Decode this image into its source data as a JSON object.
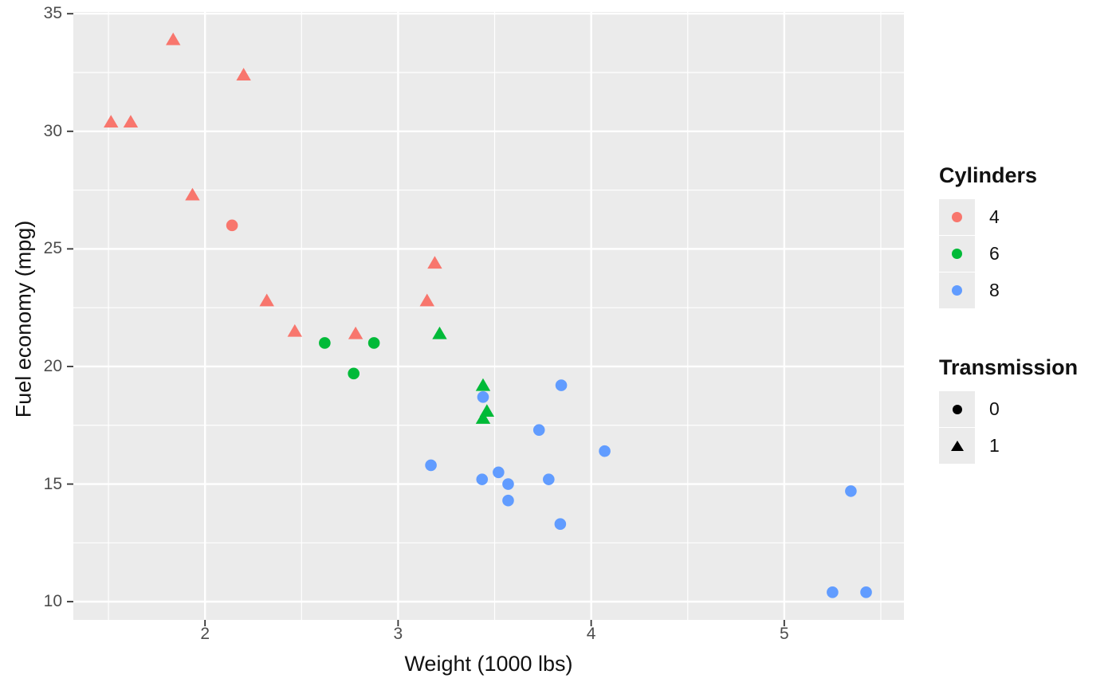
{
  "figure": {
    "background": "#ffffff",
    "panel_bg": "#ebebeb",
    "grid_color": "#ffffff",
    "tick_mark_color": "#333333",
    "tick_label_color": "#4d4d4d"
  },
  "chart_data": {
    "type": "scatter",
    "title": "",
    "xlabel": "Weight (1000 lbs)",
    "ylabel": "Fuel economy (mpg)",
    "xlim": [
      1.318,
      5.62
    ],
    "ylim": [
      9.225,
      35.075
    ],
    "x_ticks": [
      2,
      3,
      4,
      5
    ],
    "x_minor_ticks": [
      1.5,
      2.5,
      3.5,
      4.5,
      5.5
    ],
    "y_ticks": [
      10,
      15,
      20,
      25,
      30,
      35
    ],
    "y_minor_ticks": [
      12.5,
      17.5,
      22.5,
      27.5,
      32.5
    ],
    "grid": true,
    "legend_position": "right",
    "color_variable": "Cylinders",
    "shape_variable": "Transmission",
    "color_map": {
      "4": "#F8766D",
      "6": "#00BA38",
      "8": "#619CFF"
    },
    "shape_map": {
      "0": "circle",
      "1": "triangle"
    },
    "points": [
      {
        "wt": 2.62,
        "mpg": 21.0,
        "cyl": 6,
        "shape": 0
      },
      {
        "wt": 2.875,
        "mpg": 21.0,
        "cyl": 6,
        "shape": 0
      },
      {
        "wt": 2.32,
        "mpg": 22.8,
        "cyl": 4,
        "shape": 1
      },
      {
        "wt": 3.215,
        "mpg": 21.4,
        "cyl": 6,
        "shape": 1
      },
      {
        "wt": 3.44,
        "mpg": 18.7,
        "cyl": 8,
        "shape": 0
      },
      {
        "wt": 3.46,
        "mpg": 18.1,
        "cyl": 6,
        "shape": 1
      },
      {
        "wt": 3.57,
        "mpg": 14.3,
        "cyl": 8,
        "shape": 0
      },
      {
        "wt": 3.19,
        "mpg": 24.4,
        "cyl": 4,
        "shape": 1
      },
      {
        "wt": 3.15,
        "mpg": 22.8,
        "cyl": 4,
        "shape": 1
      },
      {
        "wt": 3.44,
        "mpg": 19.2,
        "cyl": 6,
        "shape": 1
      },
      {
        "wt": 3.44,
        "mpg": 17.8,
        "cyl": 6,
        "shape": 1
      },
      {
        "wt": 4.07,
        "mpg": 16.4,
        "cyl": 8,
        "shape": 0
      },
      {
        "wt": 3.73,
        "mpg": 17.3,
        "cyl": 8,
        "shape": 0
      },
      {
        "wt": 3.78,
        "mpg": 15.2,
        "cyl": 8,
        "shape": 0
      },
      {
        "wt": 5.25,
        "mpg": 10.4,
        "cyl": 8,
        "shape": 0
      },
      {
        "wt": 5.424,
        "mpg": 10.4,
        "cyl": 8,
        "shape": 0
      },
      {
        "wt": 5.345,
        "mpg": 14.7,
        "cyl": 8,
        "shape": 0
      },
      {
        "wt": 2.2,
        "mpg": 32.4,
        "cyl": 4,
        "shape": 1
      },
      {
        "wt": 1.615,
        "mpg": 30.4,
        "cyl": 4,
        "shape": 1
      },
      {
        "wt": 1.835,
        "mpg": 33.9,
        "cyl": 4,
        "shape": 1
      },
      {
        "wt": 2.465,
        "mpg": 21.5,
        "cyl": 4,
        "shape": 1
      },
      {
        "wt": 3.52,
        "mpg": 15.5,
        "cyl": 8,
        "shape": 0
      },
      {
        "wt": 3.435,
        "mpg": 15.2,
        "cyl": 8,
        "shape": 0
      },
      {
        "wt": 3.84,
        "mpg": 13.3,
        "cyl": 8,
        "shape": 0
      },
      {
        "wt": 3.845,
        "mpg": 19.2,
        "cyl": 8,
        "shape": 0
      },
      {
        "wt": 1.935,
        "mpg": 27.3,
        "cyl": 4,
        "shape": 1
      },
      {
        "wt": 2.14,
        "mpg": 26.0,
        "cyl": 4,
        "shape": 0
      },
      {
        "wt": 1.513,
        "mpg": 30.4,
        "cyl": 4,
        "shape": 1
      },
      {
        "wt": 3.17,
        "mpg": 15.8,
        "cyl": 8,
        "shape": 0
      },
      {
        "wt": 2.77,
        "mpg": 19.7,
        "cyl": 6,
        "shape": 0
      },
      {
        "wt": 3.57,
        "mpg": 15.0,
        "cyl": 8,
        "shape": 0
      },
      {
        "wt": 2.78,
        "mpg": 21.4,
        "cyl": 4,
        "shape": 1
      }
    ]
  },
  "axes": {
    "x_title": "Weight (1000 lbs)",
    "y_title": "Fuel economy (mpg)"
  },
  "legend": {
    "color": {
      "title": "Cylinders",
      "items": [
        {
          "label": "4",
          "color": "#F8766D"
        },
        {
          "label": "6",
          "color": "#00BA38"
        },
        {
          "label": "8",
          "color": "#619CFF"
        }
      ]
    },
    "shape": {
      "title": "Transmission",
      "items": [
        {
          "label": "0",
          "shape": "circle"
        },
        {
          "label": "1",
          "shape": "triangle"
        }
      ]
    },
    "key_bg": "#ebebeb",
    "key_glyph_color": "#000000"
  }
}
